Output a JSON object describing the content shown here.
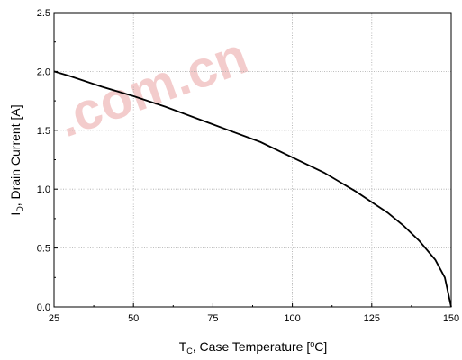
{
  "chart_data": {
    "type": "line",
    "xlabel": "T_C, Case Temperature [°C]",
    "ylabel": "I_D, Drain Current [A]",
    "xlabel_parts": {
      "main": "T",
      "sub": "C",
      "rest_before_deg": ", Case Temperature [",
      "deg": "o",
      "rest_after": "C]"
    },
    "ylabel_parts": {
      "main": "I",
      "sub": "D",
      "rest": ", Drain Current [A]"
    },
    "xlim": [
      25,
      150
    ],
    "ylim": [
      0.0,
      2.5
    ],
    "x_ticks": [
      25,
      50,
      75,
      100,
      125,
      150
    ],
    "y_ticks": [
      "0.0",
      "0.5",
      "1.0",
      "1.5",
      "2.0",
      "2.5"
    ],
    "grid": true,
    "watermark": ".com.cn",
    "series": [
      {
        "x": [
          25,
          30,
          40,
          50,
          60,
          70,
          75,
          80,
          90,
          100,
          110,
          120,
          125,
          130,
          135,
          140,
          145,
          148,
          150
        ],
        "y": [
          2.0,
          1.96,
          1.87,
          1.79,
          1.7,
          1.6,
          1.55,
          1.5,
          1.4,
          1.27,
          1.14,
          0.98,
          0.89,
          0.8,
          0.69,
          0.56,
          0.4,
          0.25,
          0.0
        ]
      }
    ],
    "colors": {
      "curve": "#000000",
      "watermark": "#f2c4c4"
    }
  }
}
